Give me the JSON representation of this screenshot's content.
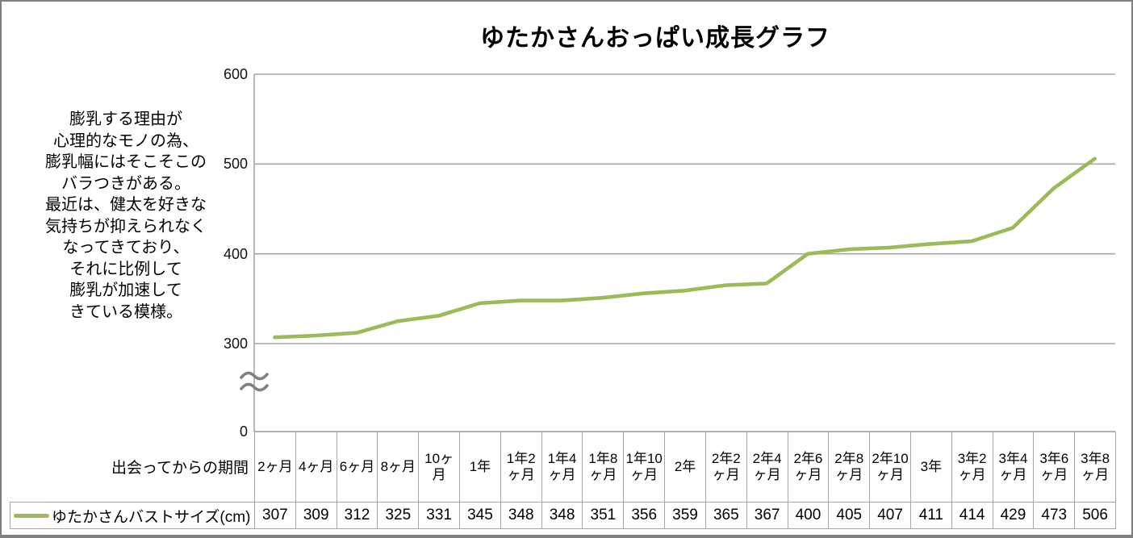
{
  "title": "ゆたかさんおっぱい成長グラフ",
  "annotation": "膨乳する理由が\n心理的なモノの為、\n膨乳幅にはそこそこの\nバラつきがある。\n最近は、健太を好きな\n気持ちが抑えられなく\nなってきており、\nそれに比例して\n膨乳が加速して\nきている模様。",
  "colors": {
    "line": "#9bbb59",
    "grid": "#a6a6a6",
    "axis": "#a6a6a6",
    "axis_break": "#808080",
    "text": "#000000"
  },
  "y_axis": {
    "tick_labels": [
      "600",
      "500",
      "400",
      "300",
      "0"
    ],
    "tick_values": [
      600,
      500,
      400,
      300,
      0
    ],
    "has_break": true
  },
  "chart_data": {
    "type": "line",
    "title": "ゆたかさんおっぱい成長グラフ",
    "x_header": "出会ってからの期間",
    "series_name": "ゆたかさんバストサイズ(cm)",
    "categories": [
      "2ヶ月",
      "4ヶ月",
      "6ヶ月",
      "8ヶ月",
      "10ヶ月",
      "1年",
      "1年2ヶ月",
      "1年4ヶ月",
      "1年8ヶ月",
      "1年10ヶ月",
      "2年",
      "2年2ヶ月",
      "2年4ヶ月",
      "2年6ヶ月",
      "2年8ヶ月",
      "2年10ヶ月",
      "3年",
      "3年2ヶ月",
      "3年4ヶ月",
      "3年6ヶ月",
      "3年8ヶ月"
    ],
    "values": [
      307,
      309,
      312,
      325,
      331,
      345,
      348,
      348,
      351,
      356,
      359,
      365,
      367,
      400,
      405,
      407,
      411,
      414,
      429,
      473,
      506
    ],
    "ylabel": "",
    "xlabel": "出会ってからの期間",
    "ylim": [
      0,
      600
    ],
    "y_break_between": [
      0,
      300
    ],
    "grid": true,
    "legend_position": "table-row-header"
  }
}
